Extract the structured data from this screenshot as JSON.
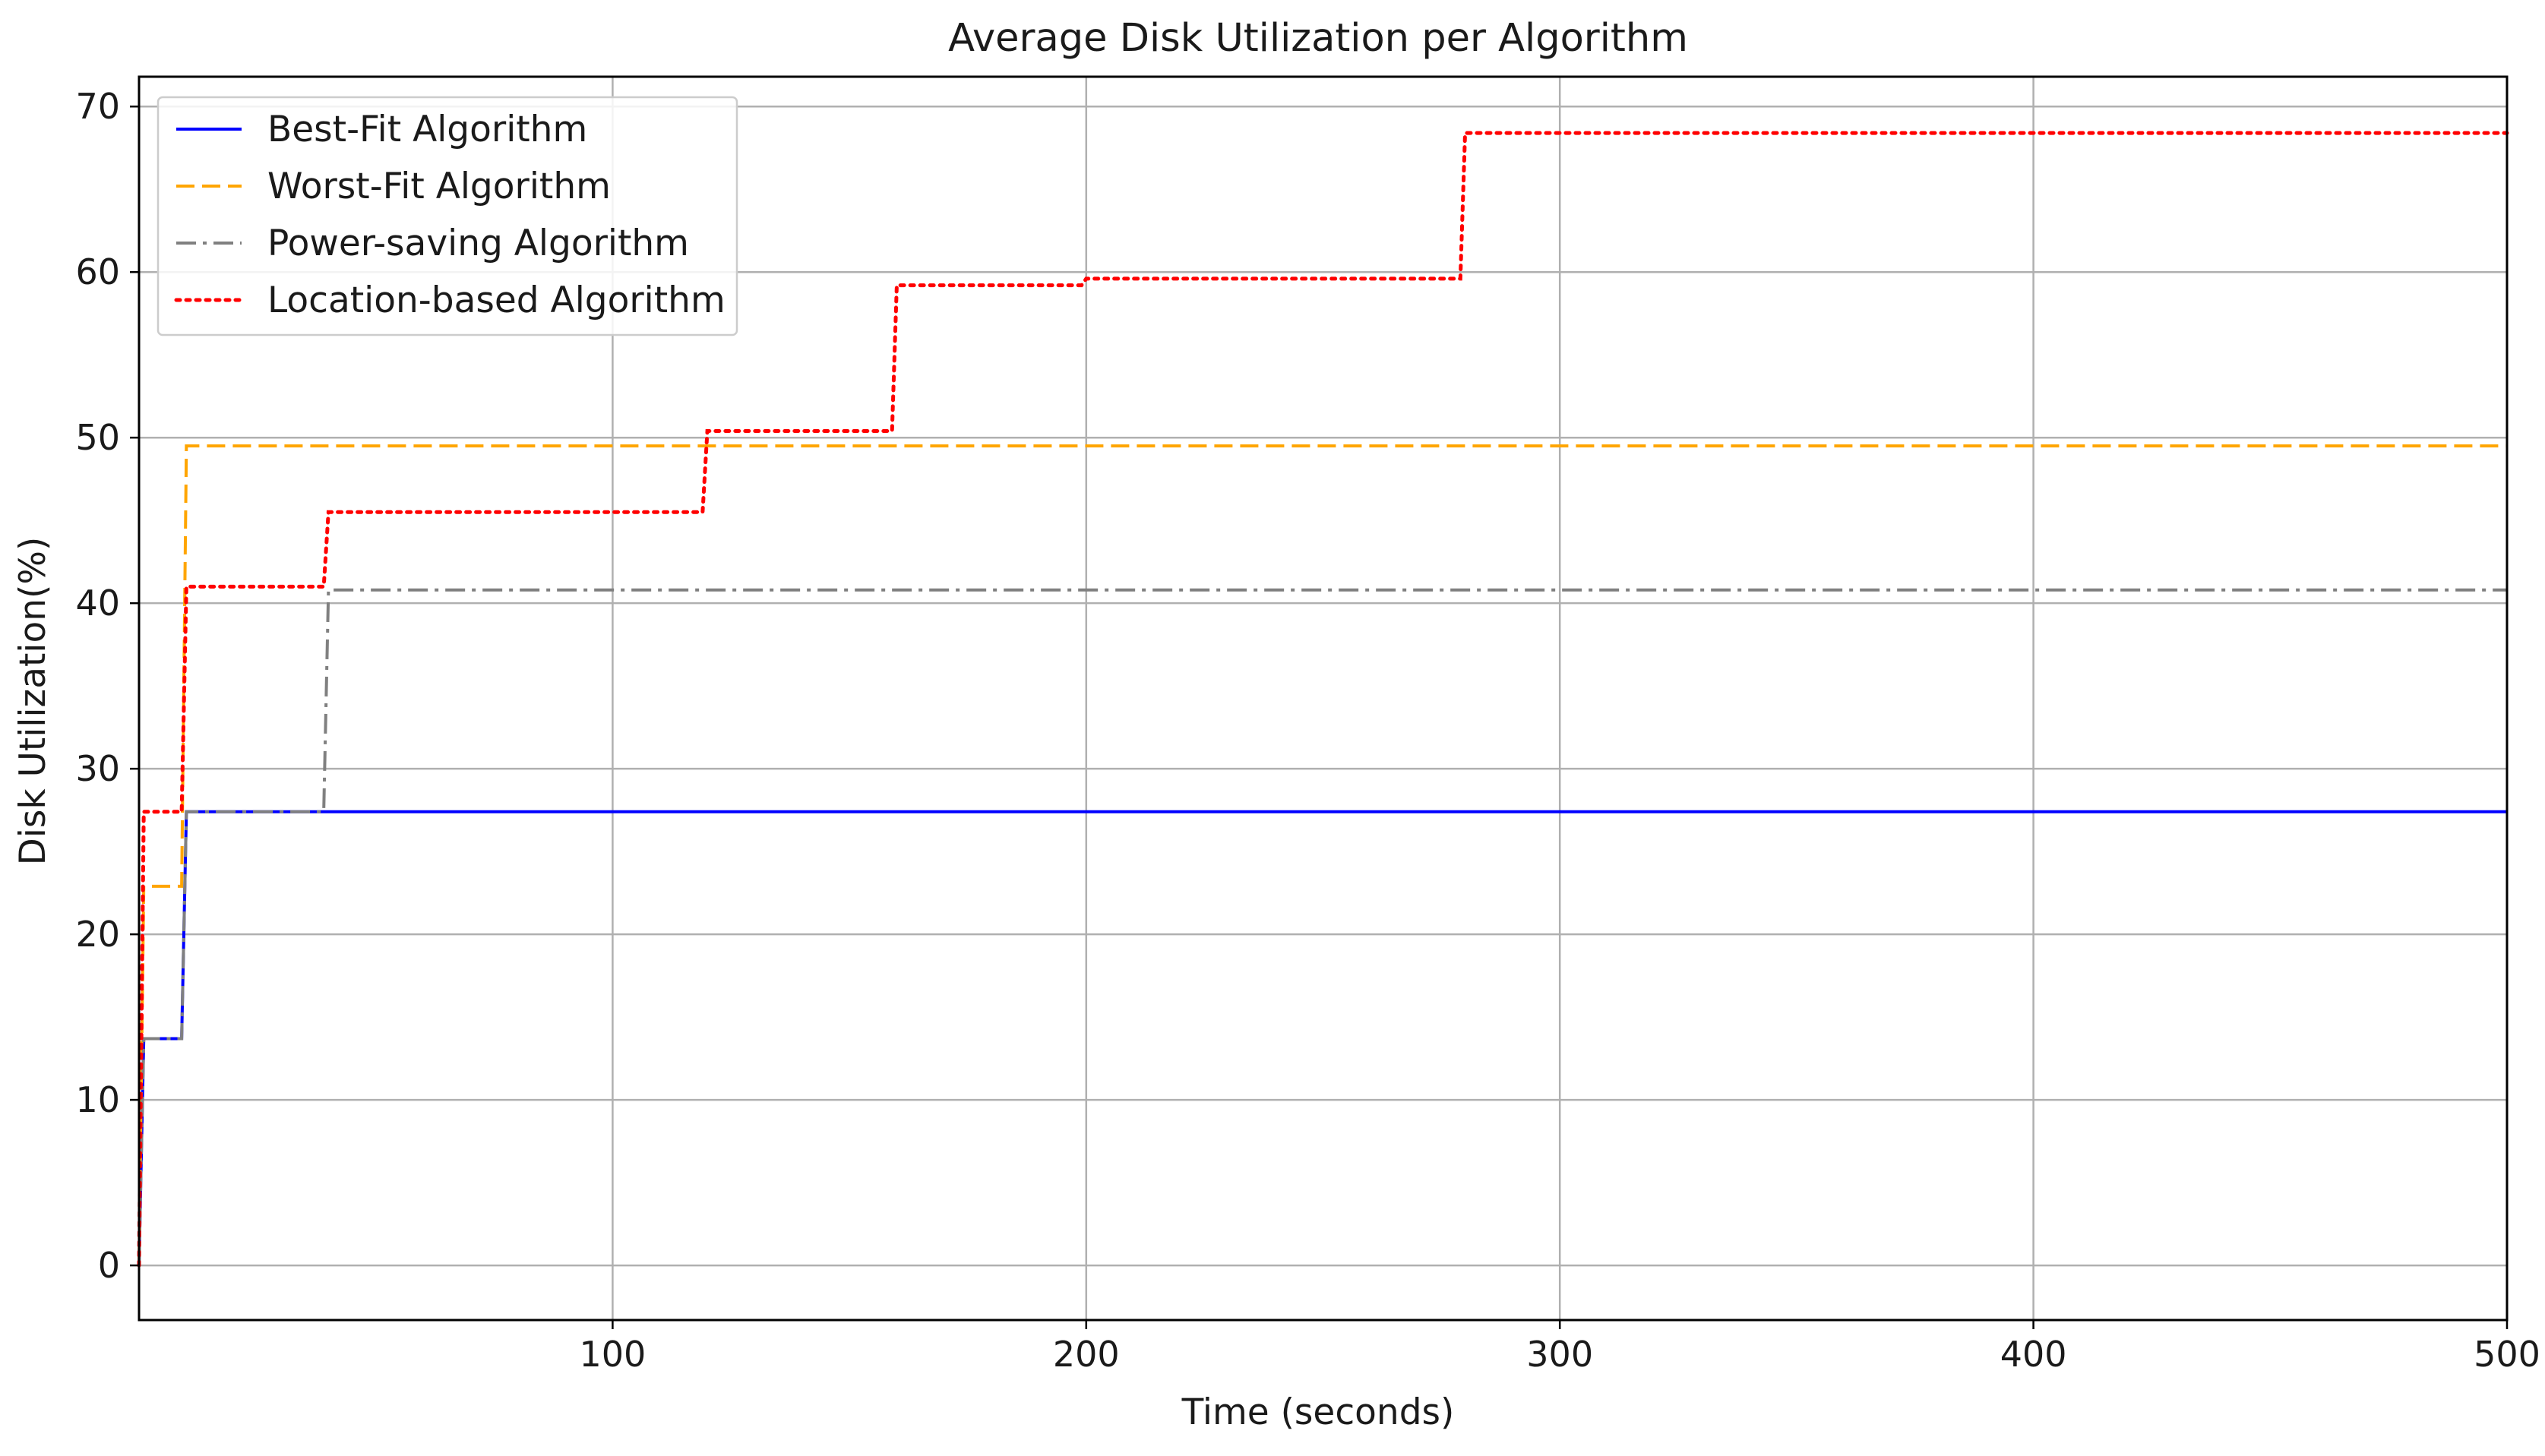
{
  "chart_data": {
    "type": "line",
    "title": "Average Disk Utilization per Algorithm",
    "xlabel": "Time (seconds)",
    "ylabel": "Disk Utilization(%)",
    "xlim": [
      0,
      500
    ],
    "ylim": [
      -3.3,
      71.8
    ],
    "xticks": [
      100,
      200,
      300,
      400,
      500
    ],
    "yticks": [
      0,
      10,
      20,
      30,
      40,
      50,
      60,
      70
    ],
    "grid": true,
    "legend_position": "top-left",
    "step": true,
    "series": [
      {
        "name": "Best-Fit Algorithm",
        "color": "#0000ff",
        "dash": "solid",
        "x": [
          0,
          1,
          9,
          10,
          500
        ],
        "y": [
          0,
          13.7,
          13.7,
          27.4,
          27.4
        ]
      },
      {
        "name": "Worst-Fit Algorithm",
        "color": "#ffa500",
        "dash": "dashed",
        "x": [
          0,
          1,
          9,
          10,
          500
        ],
        "y": [
          0,
          22.9,
          22.9,
          49.5,
          49.5
        ]
      },
      {
        "name": "Power-saving Algorithm",
        "color": "#808080",
        "dash": "dashdot",
        "x": [
          0,
          1,
          9,
          10,
          39,
          40,
          500
        ],
        "y": [
          0,
          13.7,
          13.7,
          27.4,
          27.4,
          40.8,
          40.8
        ]
      },
      {
        "name": "Location-based Algorithm",
        "color": "#ff0000",
        "dash": "dotted",
        "x": [
          0,
          1,
          9,
          10,
          39,
          40,
          119,
          120,
          159,
          160,
          199,
          200,
          279,
          280,
          500
        ],
        "y": [
          0,
          27.4,
          27.4,
          41.0,
          41.0,
          45.5,
          45.5,
          50.4,
          50.4,
          59.2,
          59.2,
          59.6,
          59.6,
          68.4,
          68.4
        ]
      }
    ]
  }
}
